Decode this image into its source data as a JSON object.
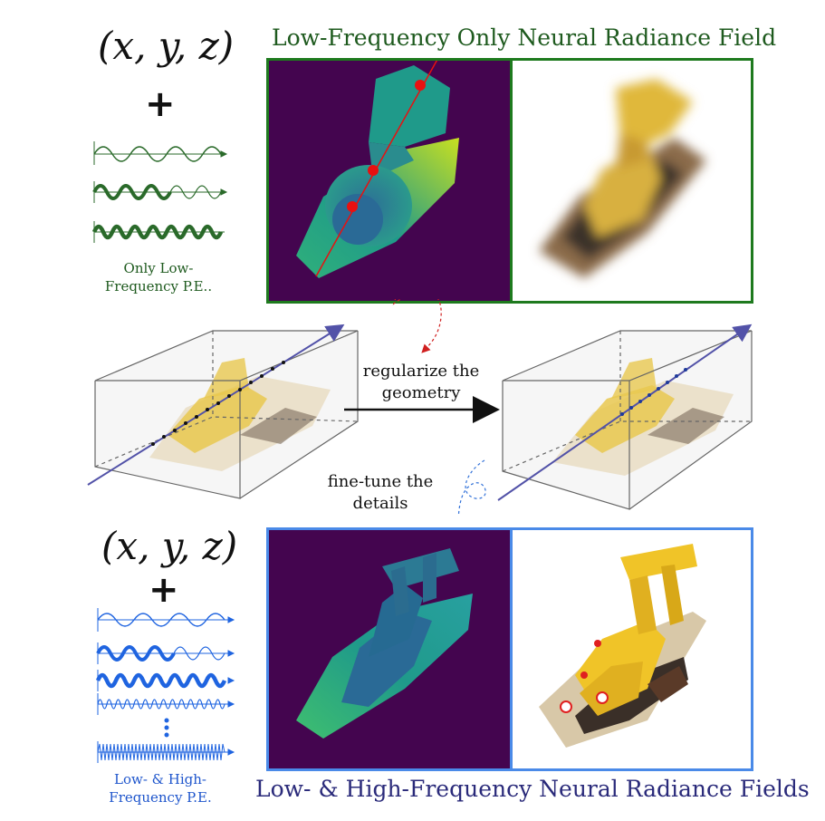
{
  "top": {
    "coords": "(x, y, z)",
    "plus": "+",
    "pe_caption_line1": "Only Low-",
    "pe_caption_line2": "Frequency P.E..",
    "title": "Low-Frequency Only Neural Radiance Field",
    "frame_color": "#1e7a1e"
  },
  "middle": {
    "arrow_label_line1": "regularize the",
    "arrow_label_line2": "geometry",
    "finetune_line1": "fine-tune the",
    "finetune_line2": "details"
  },
  "bottom": {
    "coords": "(x, y, z)",
    "plus": "+",
    "pe_caption_line1": "Low- & High-",
    "pe_caption_line2": "Frequency P.E.",
    "title": "Low- & High-Frequency Neural Radiance Fields",
    "frame_color": "#4a8ae8"
  },
  "colors": {
    "depth_bg": "#44054f",
    "green_wave": "#2a6a2a",
    "blue_wave": "#1f64e0",
    "ray": "#5252a8",
    "red_point": "#e81010"
  }
}
